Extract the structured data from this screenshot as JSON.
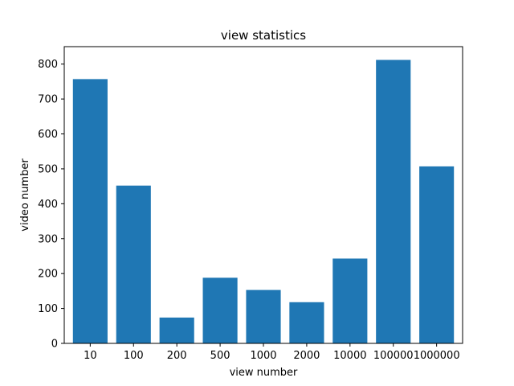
{
  "chart_data": {
    "type": "bar",
    "title": "view statistics",
    "xlabel": "view number",
    "ylabel": "video number",
    "categories": [
      "10",
      "100",
      "200",
      "500",
      "1000",
      "2000",
      "10000",
      "100000",
      "1000000"
    ],
    "values": [
      757,
      452,
      74,
      188,
      153,
      118,
      243,
      812,
      507
    ],
    "ylim": [
      0,
      850
    ],
    "yticks": [
      0,
      100,
      200,
      300,
      400,
      500,
      600,
      700,
      800
    ],
    "grid": false,
    "bar_color": "#1f77b4"
  }
}
